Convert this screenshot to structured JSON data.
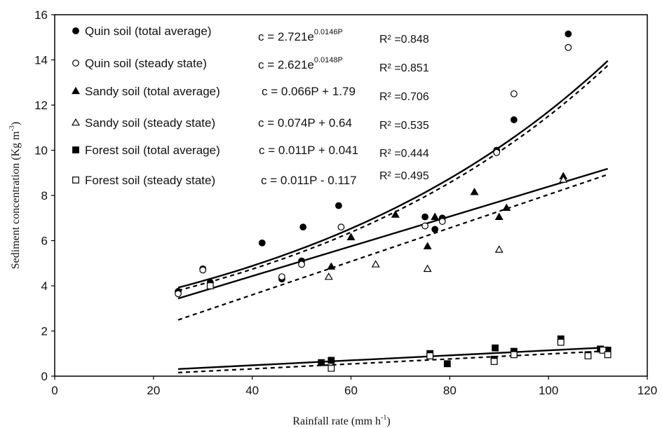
{
  "chart_data": {
    "type": "scatter",
    "xlabel": {
      "main": "Rainfall rate (mm h",
      "sup": "-1",
      "tail": ")"
    },
    "ylabel": {
      "main": "Sediment concentration (Kg m",
      "sup": "-3",
      "tail": ")"
    },
    "xlim": [
      0,
      120
    ],
    "ylim": [
      0,
      16
    ],
    "x_ticks": [
      0,
      20,
      40,
      60,
      80,
      100,
      120
    ],
    "y_ticks": [
      0,
      2,
      4,
      6,
      8,
      10,
      12,
      14,
      16
    ],
    "grid": false,
    "legend_position": "top-left",
    "series": [
      {
        "name": "Quin soil (total average)",
        "marker": "circle-filled",
        "equation": {
          "base": "c = 2.721e",
          "sup": "0.0146P"
        },
        "r2": "R² =0.848",
        "fit": {
          "kind": "exp",
          "a": 2.721,
          "b": 0.0146,
          "x_range": [
            25,
            112
          ],
          "style": "solid"
        },
        "points": [
          [
            25,
            3.75
          ],
          [
            30,
            4.75
          ],
          [
            31.5,
            4.15
          ],
          [
            42,
            5.9
          ],
          [
            46,
            4.3
          ],
          [
            50,
            5.1
          ],
          [
            50.3,
            6.6
          ],
          [
            57.5,
            7.55
          ],
          [
            75,
            7.05
          ],
          [
            77,
            6.5
          ],
          [
            78.5,
            7.0
          ],
          [
            89.5,
            10.0
          ],
          [
            93,
            11.35
          ],
          [
            104,
            15.15
          ]
        ]
      },
      {
        "name": "Quin soil (steady state)",
        "marker": "circle-open",
        "equation": {
          "base": "c = 2.621e",
          "sup": "0.0148P"
        },
        "r2": "R² =0.851",
        "fit": {
          "kind": "exp",
          "a": 2.621,
          "b": 0.0148,
          "x_range": [
            25,
            112
          ],
          "style": "dashed"
        },
        "points": [
          [
            25,
            3.65
          ],
          [
            30,
            4.7
          ],
          [
            46,
            4.4
          ],
          [
            50,
            4.95
          ],
          [
            58,
            6.6
          ],
          [
            75,
            6.65
          ],
          [
            78.5,
            6.85
          ],
          [
            89.5,
            9.9
          ],
          [
            93,
            12.5
          ],
          [
            104,
            14.55
          ]
        ]
      },
      {
        "name": "Sandy soil (total average)",
        "marker": "triangle-filled",
        "equation": {
          "base": "c = 0.066P + 1.79",
          "sup": ""
        },
        "r2": "R² =0.706",
        "fit": {
          "kind": "linear",
          "a": 0.066,
          "b": 1.79,
          "x_range": [
            25,
            112
          ],
          "style": "solid"
        },
        "points": [
          [
            56,
            4.85
          ],
          [
            60,
            6.15
          ],
          [
            69,
            7.15
          ],
          [
            75.5,
            5.75
          ],
          [
            77,
            7.05
          ],
          [
            85,
            8.15
          ],
          [
            90,
            7.05
          ],
          [
            91.5,
            7.45
          ],
          [
            103,
            8.85
          ]
        ]
      },
      {
        "name": "Sandy soil (steady state)",
        "marker": "triangle-open",
        "equation": {
          "base": "c = 0.074P + 0.64",
          "sup": ""
        },
        "r2": "R² =0.535",
        "fit": {
          "kind": "linear",
          "a": 0.074,
          "b": 0.64,
          "x_range": [
            25,
            112
          ],
          "style": "dashed"
        },
        "points": [
          [
            55.5,
            4.4
          ],
          [
            65,
            4.95
          ],
          [
            75.5,
            4.75
          ],
          [
            90,
            5.6
          ],
          [
            103,
            8.7
          ]
        ]
      },
      {
        "name": "Forest soil (total average)",
        "marker": "square-filled",
        "equation": {
          "base": "c = 0.011P + 0.041",
          "sup": ""
        },
        "r2": "R² =0.444",
        "fit": {
          "kind": "linear",
          "a": 0.011,
          "b": 0.041,
          "x_range": [
            25,
            112
          ],
          "style": "solid"
        },
        "points": [
          [
            54,
            0.6
          ],
          [
            56,
            0.7
          ],
          [
            76,
            1.0
          ],
          [
            79.5,
            0.55
          ],
          [
            89,
            0.75
          ],
          [
            89.2,
            1.25
          ],
          [
            93,
            1.1
          ],
          [
            102.5,
            1.65
          ],
          [
            108,
            0.95
          ],
          [
            110.5,
            1.2
          ],
          [
            112,
            1.15
          ]
        ]
      },
      {
        "name": "Forest soil (steady state)",
        "marker": "square-open",
        "equation": {
          "base": "c = 0.011P - 0.117",
          "sup": ""
        },
        "r2": "R² =0.495",
        "fit": {
          "kind": "linear",
          "a": 0.011,
          "b": -0.117,
          "x_range": [
            25,
            112
          ],
          "style": "dashed"
        },
        "points": [
          [
            31.5,
            4.0
          ],
          [
            56,
            0.35
          ],
          [
            76,
            0.9
          ],
          [
            89,
            0.65
          ],
          [
            93,
            0.95
          ],
          [
            102.5,
            1.5
          ],
          [
            108,
            0.9
          ],
          [
            111,
            1.15
          ],
          [
            112,
            0.95
          ]
        ]
      }
    ]
  }
}
